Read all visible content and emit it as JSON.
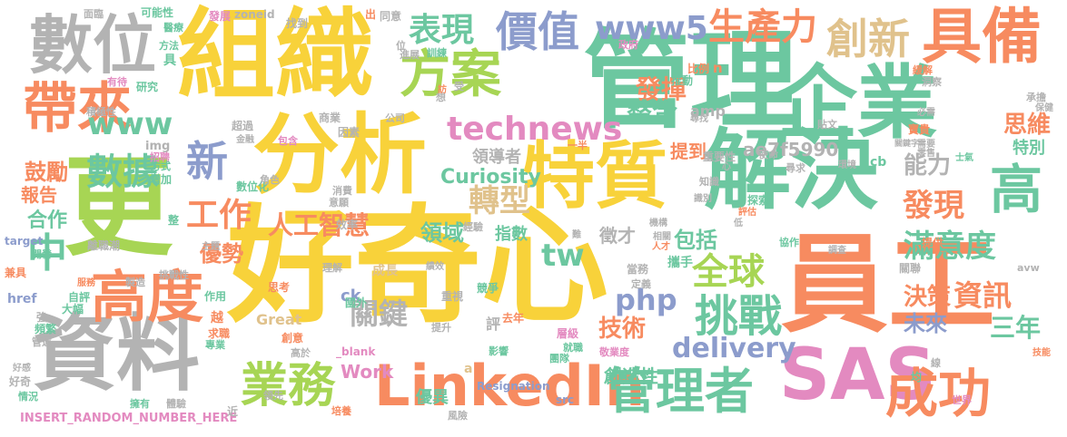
{
  "palette": {
    "yellow": "#f8d23a",
    "green": "#6cc7a0",
    "orange": "#f78b60",
    "blue": "#8c9ccc",
    "pink": "#e38ac0",
    "lime": "#a7d554",
    "tan": "#e0c28c",
    "gray": "#b3b3b3"
  },
  "words": [
    {
      "text": "好奇心",
      "color": "yellow"
    },
    {
      "text": "管理",
      "color": "green"
    },
    {
      "text": "企業",
      "color": "green"
    },
    {
      "text": "組織",
      "color": "yellow"
    },
    {
      "text": "員工",
      "color": "orange"
    },
    {
      "text": "分析",
      "color": "yellow"
    },
    {
      "text": "資料",
      "color": "gray"
    },
    {
      "text": "解決",
      "color": "green"
    },
    {
      "text": "特質",
      "color": "yellow"
    },
    {
      "text": "更",
      "color": "lime"
    },
    {
      "text": "數位",
      "color": "gray"
    },
    {
      "text": "SAS",
      "color": "pink"
    },
    {
      "text": "LinkedIn",
      "color": "orange"
    },
    {
      "text": "具備",
      "color": "orange"
    },
    {
      "text": "高度",
      "color": "orange"
    },
    {
      "text": "帶來",
      "color": "orange"
    },
    {
      "text": "方案",
      "color": "lime"
    },
    {
      "text": "成功",
      "color": "orange"
    },
    {
      "text": "管理者",
      "color": "green"
    },
    {
      "text": "業務",
      "color": "lime"
    },
    {
      "text": "價值",
      "color": "blue"
    },
    {
      "text": "創新",
      "color": "tan"
    },
    {
      "text": "挑戰",
      "color": "green"
    },
    {
      "text": "高",
      "color": "green"
    },
    {
      "text": "數據",
      "color": "green"
    },
    {
      "text": "新",
      "color": "blue"
    },
    {
      "text": "中",
      "color": "green"
    },
    {
      "text": "表現",
      "color": "green"
    },
    {
      "text": "www5",
      "color": "blue"
    },
    {
      "text": "生產力",
      "color": "orange"
    },
    {
      "text": "technews",
      "color": "pink"
    },
    {
      "text": "全球",
      "color": "lime"
    },
    {
      "text": "www",
      "color": "green"
    },
    {
      "text": "tw",
      "color": "green"
    },
    {
      "text": "php",
      "color": "blue"
    },
    {
      "text": "工作",
      "color": "orange"
    },
    {
      "text": "發現",
      "color": "orange"
    },
    {
      "text": "滿意度",
      "color": "green"
    },
    {
      "text": "資訊",
      "color": "orange"
    },
    {
      "text": "人工智慧",
      "color": "orange"
    },
    {
      "text": "delivery",
      "color": "blue"
    },
    {
      "text": "轉型",
      "color": "tan"
    },
    {
      "text": "關鍵",
      "color": "gray"
    },
    {
      "text": "能力",
      "color": "gray"
    },
    {
      "text": "決策",
      "color": "orange"
    },
    {
      "text": "未來",
      "color": "blue"
    },
    {
      "text": "三年",
      "color": "green"
    },
    {
      "text": "發揮",
      "color": "orange"
    },
    {
      "text": "整合",
      "color": "green"
    },
    {
      "text": "Curiosity",
      "color": "green"
    },
    {
      "text": "ae7f5990",
      "color": "gray"
    },
    {
      "text": "思維",
      "color": "orange"
    },
    {
      "text": "特別",
      "color": "green"
    },
    {
      "text": "提到",
      "color": "orange"
    },
    {
      "text": "領域",
      "color": "green"
    },
    {
      "text": "優勢",
      "color": "orange"
    },
    {
      "text": "合作",
      "color": "green"
    },
    {
      "text": "鼓勵",
      "color": "orange"
    },
    {
      "text": "報告",
      "color": "orange"
    },
    {
      "text": "技術",
      "color": "orange"
    },
    {
      "text": "創造性",
      "color": "green"
    },
    {
      "text": "包括",
      "color": "green"
    },
    {
      "text": "指數",
      "color": "green"
    },
    {
      "text": "徵才",
      "color": "gray"
    },
    {
      "text": "領導者",
      "color": "gray"
    },
    {
      "text": "Work",
      "color": "pink"
    },
    {
      "text": "優異",
      "color": "green"
    },
    {
      "text": "Great",
      "color": "tan"
    },
    {
      "text": "Resignation",
      "color": "blue"
    },
    {
      "text": "INSERT_RANDOM_NUMBER_HERE",
      "color": "pink"
    },
    {
      "text": "href",
      "color": "blue"
    },
    {
      "text": "target",
      "color": "blue"
    },
    {
      "text": "img",
      "color": "gray"
    },
    {
      "text": "amp",
      "color": "gray"
    },
    {
      "text": "zoneid",
      "color": "gray"
    },
    {
      "text": "_blank",
      "color": "pink"
    },
    {
      "text": "ck",
      "color": "blue"
    },
    {
      "text": "cb",
      "color": "green"
    },
    {
      "text": "src",
      "color": "blue"
    },
    {
      "text": "avw",
      "color": "gray"
    },
    {
      "text": "a",
      "color": "tan"
    },
    {
      "text": "n",
      "color": "orange"
    },
    {
      "text": "可能性",
      "color": "green"
    },
    {
      "text": "發展",
      "color": "pink"
    },
    {
      "text": "面臨",
      "color": "gray"
    },
    {
      "text": "找到",
      "color": "gray"
    },
    {
      "text": "出",
      "color": "orange"
    },
    {
      "text": "同意",
      "color": "gray"
    },
    {
      "text": "政府",
      "color": "pink"
    },
    {
      "text": "訓練",
      "color": "green"
    },
    {
      "text": "進展",
      "color": "gray"
    },
    {
      "text": "比例",
      "color": "orange"
    },
    {
      "text": "推動",
      "color": "green"
    },
    {
      "text": "緩解",
      "color": "orange"
    },
    {
      "text": "洞察",
      "color": "gray"
    },
    {
      "text": "承擔",
      "color": "gray"
    },
    {
      "text": "保健",
      "color": "gray"
    },
    {
      "text": "研究",
      "color": "green"
    },
    {
      "text": "有待",
      "color": "pink"
    },
    {
      "text": "積極性",
      "color": "gray"
    },
    {
      "text": "超過",
      "color": "gray"
    },
    {
      "text": "金融",
      "color": "gray"
    },
    {
      "text": "商業",
      "color": "gray"
    },
    {
      "text": "因素",
      "color": "gray"
    },
    {
      "text": "公司",
      "color": "gray"
    },
    {
      "text": "一半",
      "color": "orange"
    },
    {
      "text": "尋找",
      "color": "gray"
    },
    {
      "text": "必需",
      "color": "gray"
    },
    {
      "text": "貼文",
      "color": "gray"
    },
    {
      "text": "寶貴",
      "color": "orange"
    },
    {
      "text": "招聘",
      "color": "pink"
    },
    {
      "text": "方式",
      "color": "green"
    },
    {
      "text": "增加",
      "color": "green"
    },
    {
      "text": "數位化",
      "color": "green"
    },
    {
      "text": "消費",
      "color": "gray"
    },
    {
      "text": "意願",
      "color": "gray"
    },
    {
      "text": "角色",
      "color": "gray"
    },
    {
      "text": "包含",
      "color": "pink"
    },
    {
      "text": "重要性",
      "color": "gray"
    },
    {
      "text": "使命",
      "color": "gray"
    },
    {
      "text": "尋求",
      "color": "gray"
    },
    {
      "text": "環境",
      "color": "gray"
    },
    {
      "text": "需要",
      "color": "gray"
    },
    {
      "text": "零售",
      "color": "gray"
    },
    {
      "text": "士氣",
      "color": "green"
    },
    {
      "text": "知識",
      "color": "gray"
    },
    {
      "text": "識別",
      "color": "gray"
    },
    {
      "text": "探索",
      "color": "green"
    },
    {
      "text": "評估",
      "color": "orange"
    },
    {
      "text": "效率",
      "color": "gray"
    },
    {
      "text": "經驗",
      "color": "gray"
    },
    {
      "text": "機構",
      "color": "gray"
    },
    {
      "text": "相關",
      "color": "gray"
    },
    {
      "text": "人才",
      "color": "orange"
    },
    {
      "text": "協作",
      "color": "green"
    },
    {
      "text": "調查",
      "color": "gray"
    },
    {
      "text": "提供",
      "color": "orange"
    },
    {
      "text": "關聯",
      "color": "gray"
    },
    {
      "text": "攜手",
      "color": "green"
    },
    {
      "text": "當務",
      "color": "gray"
    },
    {
      "text": "定義",
      "color": "gray"
    },
    {
      "text": "競爭",
      "color": "green"
    },
    {
      "text": "離職潮",
      "color": "gray"
    },
    {
      "text": "主題",
      "color": "gray"
    },
    {
      "text": "績效",
      "color": "gray"
    },
    {
      "text": "挑戰性",
      "color": "gray"
    },
    {
      "text": "服務",
      "color": "orange"
    },
    {
      "text": "製造",
      "color": "gray"
    },
    {
      "text": "自評",
      "color": "green"
    },
    {
      "text": "作用",
      "color": "green"
    },
    {
      "text": "大幅",
      "color": "green"
    },
    {
      "text": "頻繁",
      "color": "green"
    },
    {
      "text": "管運",
      "color": "gray"
    },
    {
      "text": "理解",
      "color": "gray"
    },
    {
      "text": "思考",
      "color": "orange"
    },
    {
      "text": "成長",
      "color": "tan"
    },
    {
      "text": "重視",
      "color": "gray"
    },
    {
      "text": "國外",
      "color": "green"
    },
    {
      "text": "提升",
      "color": "gray"
    },
    {
      "text": "去年",
      "color": "orange"
    },
    {
      "text": "層級",
      "color": "pink"
    },
    {
      "text": "就職",
      "color": "green"
    },
    {
      "text": "敬業度",
      "color": "pink"
    },
    {
      "text": "團隊",
      "color": "green"
    },
    {
      "text": "影響",
      "color": "green"
    },
    {
      "text": "創意",
      "color": "orange"
    },
    {
      "text": "高於",
      "color": "gray"
    },
    {
      "text": "求職",
      "color": "orange"
    },
    {
      "text": "專業",
      "color": "green"
    },
    {
      "text": "好感",
      "color": "gray"
    },
    {
      "text": "好奇",
      "color": "gray"
    },
    {
      "text": "情況",
      "color": "green"
    },
    {
      "text": "擁有",
      "color": "green"
    },
    {
      "text": "體驗",
      "color": "gray"
    },
    {
      "text": "領先",
      "color": "gray"
    },
    {
      "text": "風險",
      "color": "gray"
    },
    {
      "text": "培養",
      "color": "orange"
    },
    {
      "text": "技能",
      "color": "orange"
    },
    {
      "text": "世界",
      "color": "pink"
    },
    {
      "text": "均",
      "color": "green"
    },
    {
      "text": "線",
      "color": "gray"
    },
    {
      "text": "兼具",
      "color": "orange"
    },
    {
      "text": "開發",
      "color": "green"
    },
    {
      "text": "醫療",
      "color": "green"
    },
    {
      "text": "方法",
      "color": "green"
    },
    {
      "text": "評",
      "color": "gray"
    },
    {
      "text": "越",
      "color": "orange"
    },
    {
      "text": "強",
      "color": "gray"
    },
    {
      "text": "整",
      "color": "green"
    },
    {
      "text": "受",
      "color": "gray"
    },
    {
      "text": "想",
      "color": "gray"
    },
    {
      "text": "位",
      "color": "gray"
    },
    {
      "text": "訪",
      "color": "orange"
    },
    {
      "text": "具",
      "color": "green"
    },
    {
      "text": "心",
      "color": "gray"
    },
    {
      "text": "低",
      "color": "gray"
    },
    {
      "text": "難",
      "color": "gray"
    },
    {
      "text": "近",
      "color": "gray"
    },
    {
      "text": "關鍵字",
      "color": "gray"
    }
  ]
}
